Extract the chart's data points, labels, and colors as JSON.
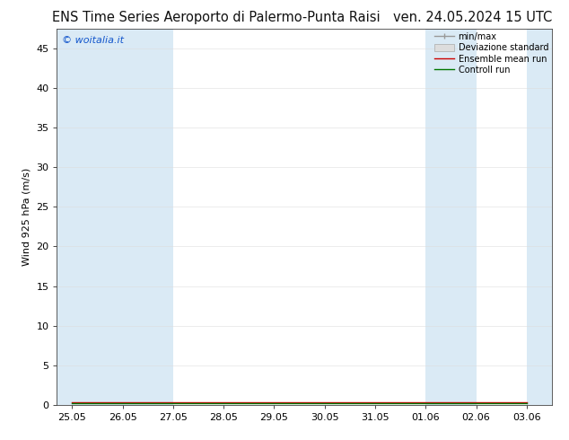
{
  "title_left": "ENS Time Series Aeroporto di Palermo-Punta Raisi",
  "title_right": "ven. 24.05.2024 15 UTC",
  "ylabel": "Wind 925 hPa (m/s)",
  "watermark": "© woitalia.it",
  "x_tick_labels": [
    "25.05",
    "26.05",
    "27.05",
    "28.05",
    "29.05",
    "30.05",
    "31.05",
    "01.06",
    "02.06",
    "03.06"
  ],
  "x_tick_positions": [
    0,
    1,
    2,
    3,
    4,
    5,
    6,
    7,
    8,
    9
  ],
  "xlim_min": -0.3,
  "xlim_max": 9.5,
  "ylim": [
    0,
    47.5
  ],
  "yticks": [
    0,
    5,
    10,
    15,
    20,
    25,
    30,
    35,
    40,
    45
  ],
  "shaded_bands": [
    {
      "x_start": -0.3,
      "x_end": 1.0,
      "color": "#daeaf5"
    },
    {
      "x_start": 1.0,
      "x_end": 2.0,
      "color": "#daeaf5"
    },
    {
      "x_start": 7.0,
      "x_end": 8.0,
      "color": "#daeaf5"
    },
    {
      "x_start": 9.0,
      "x_end": 9.5,
      "color": "#daeaf5"
    }
  ],
  "background_color": "#ffffff",
  "plot_bg_color": "#ffffff",
  "legend_entries": [
    {
      "label": "min/max",
      "color": "#aaaaaa",
      "linestyle": "-",
      "linewidth": 1.2
    },
    {
      "label": "Deviazione standard",
      "color": "#cccccc",
      "linestyle": "-",
      "linewidth": 6
    },
    {
      "label": "Ensemble mean run",
      "color": "#cc0000",
      "linestyle": "-",
      "linewidth": 1.0
    },
    {
      "label": "Controll run",
      "color": "#007700",
      "linestyle": "-",
      "linewidth": 1.0
    }
  ],
  "title_fontsize": 10.5,
  "tick_fontsize": 8,
  "ylabel_fontsize": 8,
  "watermark_fontsize": 8,
  "watermark_color": "#1155cc",
  "grid_color": "#dddddd",
  "x_data": [
    0,
    1,
    2,
    3,
    4,
    5,
    6,
    7,
    8,
    9
  ],
  "mean_data": [
    0.3,
    0.3,
    0.3,
    0.3,
    0.3,
    0.3,
    0.3,
    0.3,
    0.3,
    0.3
  ],
  "control_data": [
    0.2,
    0.2,
    0.2,
    0.2,
    0.2,
    0.2,
    0.2,
    0.2,
    0.2,
    0.2
  ]
}
